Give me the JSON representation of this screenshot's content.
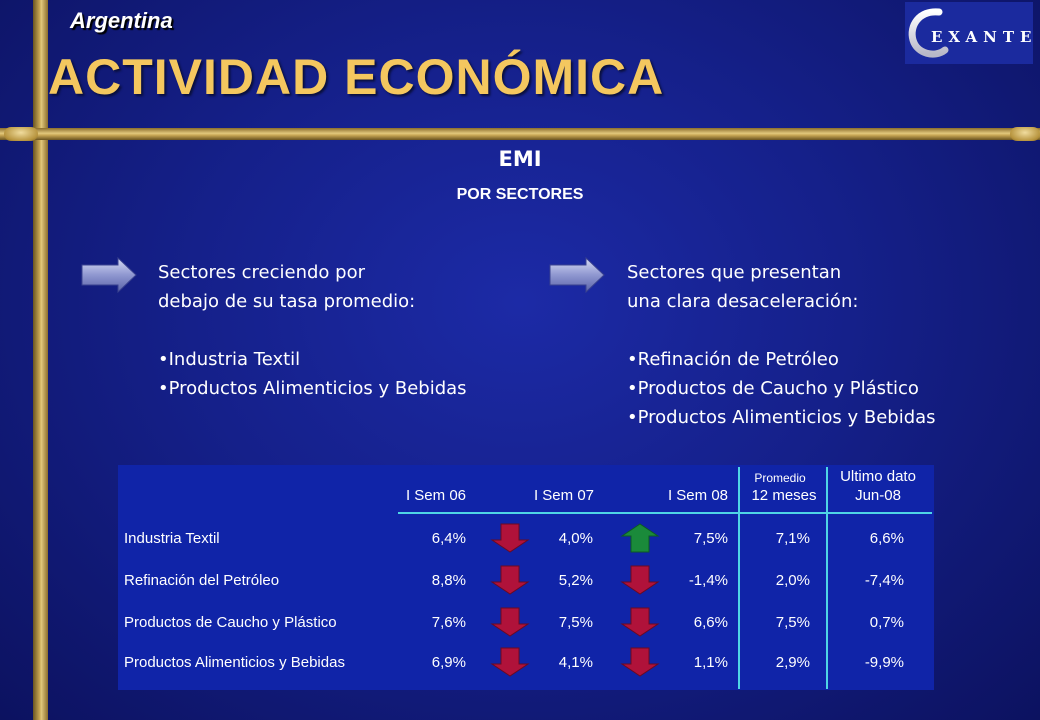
{
  "header": {
    "country": "Argentina",
    "title": "ACTIVIDAD ECONÓMICA",
    "logo_text": "EXANTE"
  },
  "section": {
    "title": "EMI",
    "subtitle": "POR SECTORES"
  },
  "left_column": {
    "heading_line1": "Sectores creciendo por",
    "heading_line2": "debajo de su  tasa promedio:",
    "items": [
      "•Industria Textil",
      "•Productos Alimenticios y Bebidas"
    ]
  },
  "right_column": {
    "heading_line1": "Sectores que presentan",
    "heading_line2": "una clara desaceleración:",
    "items": [
      "•Refinación de Petróleo",
      "•Productos de Caucho y Plástico",
      "•Productos Alimenticios y Bebidas"
    ]
  },
  "table": {
    "headers": {
      "sem06": "I Sem 06",
      "sem07": "I Sem 07",
      "sem08": "I Sem 08",
      "prom_top": "Promedio",
      "prom_bottom": "12 meses",
      "ult_top": "Ultimo dato",
      "ult_bottom": "Jun-08"
    },
    "rows": [
      {
        "label": "Industria Textil",
        "sem06": "6,4%",
        "sem07": "4,0%",
        "sem08": "7,5%",
        "promedio": "7,1%",
        "ultimo": "6,6%",
        "trend1": "down",
        "trend2": "up"
      },
      {
        "label": "Refinación del Petróleo",
        "sem06": "8,8%",
        "sem07": "5,2%",
        "sem08": "-1,4%",
        "promedio": "2,0%",
        "ultimo": "-7,4%",
        "trend1": "down",
        "trend2": "down"
      },
      {
        "label": "Productos de Caucho y Plástico",
        "sem06": "7,6%",
        "sem07": "7,5%",
        "sem08": "6,6%",
        "promedio": "7,5%",
        "ultimo": "0,7%",
        "trend1": "down",
        "trend2": "down"
      },
      {
        "label": "Productos Alimenticios y Bebidas",
        "sem06": "6,9%",
        "sem07": "4,1%",
        "sem08": "1,1%",
        "promedio": "2,9%",
        "ultimo": "-9,9%",
        "trend1": "down",
        "trend2": "down"
      }
    ],
    "colors": {
      "down": "#b0123a",
      "up": "#1a8a3a",
      "lines": "#4fd5e6"
    }
  }
}
